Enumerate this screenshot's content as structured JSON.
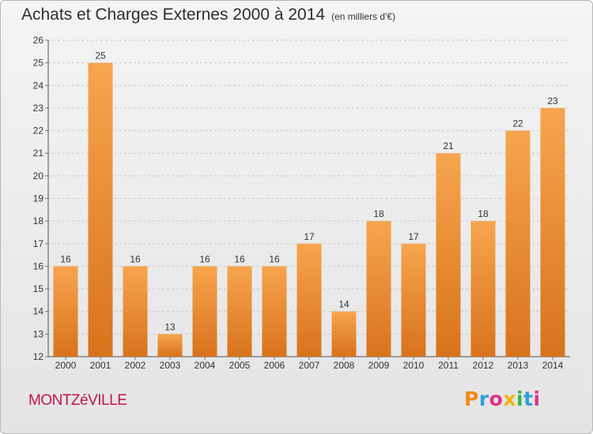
{
  "header": {
    "title": "Achats et Charges Externes 2000 à 2014",
    "subtitle": "(en milliers d'€)"
  },
  "footer": {
    "commune": "MONTZéVILLE",
    "brand_letters": [
      "P",
      "r",
      "o",
      "x",
      "i",
      "t",
      "i"
    ],
    "brand_colors": [
      "#f08a17",
      "#2c9fdc",
      "#e0308a",
      "#f0b400",
      "#39b54a",
      "#2c9fdc",
      "#e0308a"
    ]
  },
  "chart_data": {
    "type": "bar",
    "categories": [
      "2000",
      "2001",
      "2002",
      "2003",
      "2004",
      "2005",
      "2006",
      "2007",
      "2008",
      "2009",
      "2010",
      "2011",
      "2012",
      "2013",
      "2014"
    ],
    "values": [
      16,
      25,
      16,
      13,
      16,
      16,
      16,
      17,
      14,
      18,
      17,
      21,
      18,
      22,
      23
    ],
    "yticks": [
      12,
      13,
      14,
      15,
      16,
      17,
      18,
      19,
      20,
      21,
      22,
      23,
      24,
      25,
      26
    ],
    "ylim": [
      12,
      26
    ],
    "grid": true,
    "bar_color_top": "#f7a54e",
    "bar_color_bottom": "#d8731c",
    "title": "Achats et Charges Externes 2000 à 2014",
    "xlabel": "",
    "ylabel": ""
  }
}
